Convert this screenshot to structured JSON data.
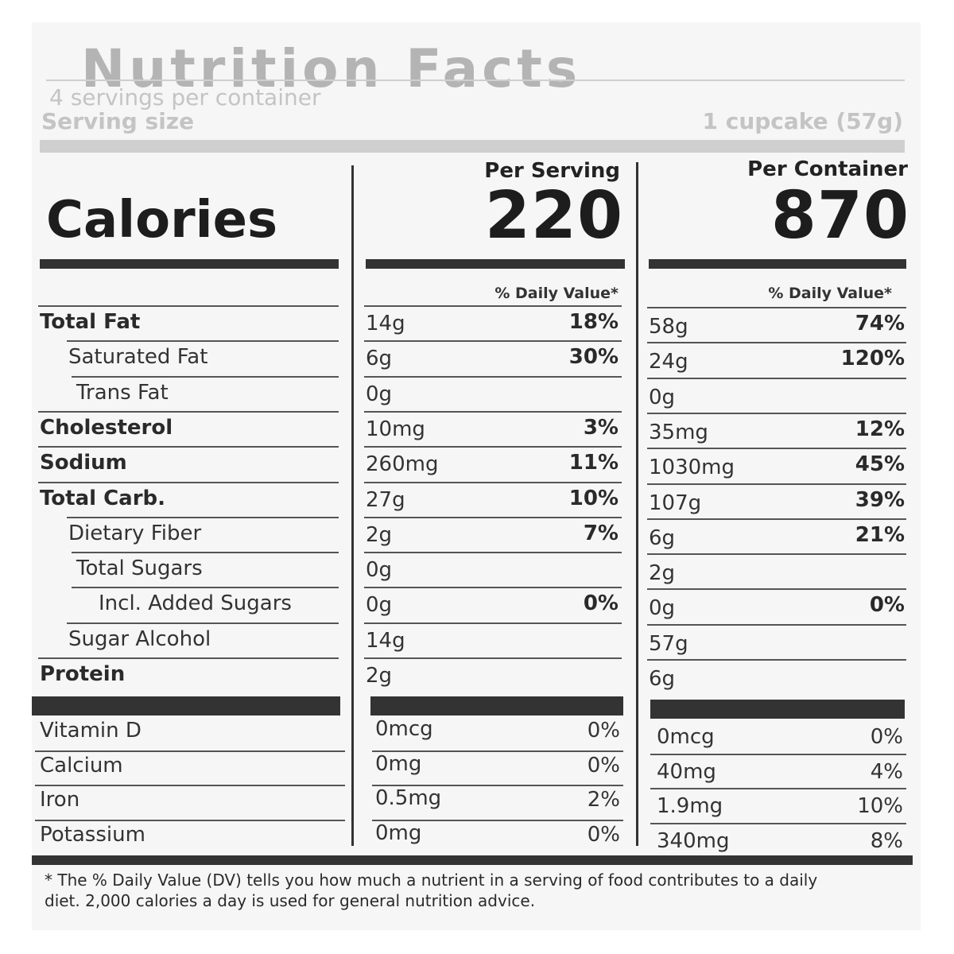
{
  "title": "Nutrition Facts",
  "servings_per_container": "4 servings per container",
  "serving_size_label": "Serving size",
  "serving_size_value": "1 cupcake (57g)",
  "calories_label": "Calories",
  "columns": [
    {
      "header": "Per Serving",
      "calories": "220",
      "dv_header": "% Daily Value*"
    },
    {
      "header": "Per Container",
      "calories": "870",
      "dv_header": "% Daily Value*"
    }
  ],
  "nutrients": [
    {
      "label": "Total Fat",
      "bold": true,
      "indent": 0,
      "serving": {
        "amount": "14g",
        "dv": "18%"
      },
      "container": {
        "amount": "58g",
        "dv": "74%"
      }
    },
    {
      "label": "Saturated Fat",
      "bold": false,
      "indent": 1,
      "serving": {
        "amount": "6g",
        "dv": "30%"
      },
      "container": {
        "amount": "24g",
        "dv": "120%"
      }
    },
    {
      "label": "Trans Fat",
      "bold": false,
      "indent": 2,
      "serving": {
        "amount": "0g",
        "dv": ""
      },
      "container": {
        "amount": "0g",
        "dv": ""
      }
    },
    {
      "label": "Cholesterol",
      "bold": true,
      "indent": 0,
      "serving": {
        "amount": "10mg",
        "dv": "3%"
      },
      "container": {
        "amount": "35mg",
        "dv": "12%"
      }
    },
    {
      "label": "Sodium",
      "bold": true,
      "indent": 0,
      "serving": {
        "amount": "260mg",
        "dv": "11%"
      },
      "container": {
        "amount": "1030mg",
        "dv": "45%"
      }
    },
    {
      "label": "Total Carb.",
      "bold": true,
      "indent": 0,
      "serving": {
        "amount": "27g",
        "dv": "10%"
      },
      "container": {
        "amount": "107g",
        "dv": "39%"
      }
    },
    {
      "label": "Dietary Fiber",
      "bold": false,
      "indent": 1,
      "serving": {
        "amount": "2g",
        "dv": "7%"
      },
      "container": {
        "amount": "6g",
        "dv": "21%"
      }
    },
    {
      "label": "Total Sugars",
      "bold": false,
      "indent": 2,
      "serving": {
        "amount": "0g",
        "dv": ""
      },
      "container": {
        "amount": "2g",
        "dv": ""
      }
    },
    {
      "label": "Incl. Added Sugars",
      "bold": false,
      "indent": 3,
      "serving": {
        "amount": "0g",
        "dv": "0%"
      },
      "container": {
        "amount": "0g",
        "dv": "0%"
      }
    },
    {
      "label": "Sugar Alcohol",
      "bold": false,
      "indent": 1,
      "serving": {
        "amount": "14g",
        "dv": ""
      },
      "container": {
        "amount": "57g",
        "dv": ""
      }
    },
    {
      "label": "Protein",
      "bold": true,
      "indent": 0,
      "serving": {
        "amount": "2g",
        "dv": ""
      },
      "container": {
        "amount": "6g",
        "dv": ""
      }
    }
  ],
  "vitamins": [
    {
      "label": "Vitamin D",
      "serving": {
        "amount": "0mcg",
        "dv": "0%"
      },
      "container": {
        "amount": "0mcg",
        "dv": "0%"
      }
    },
    {
      "label": "Calcium",
      "serving": {
        "amount": "0mg",
        "dv": "0%"
      },
      "container": {
        "amount": "40mg",
        "dv": "4%"
      }
    },
    {
      "label": "Iron",
      "serving": {
        "amount": "0.5mg",
        "dv": "2%"
      },
      "container": {
        "amount": "1.9mg",
        "dv": "10%"
      }
    },
    {
      "label": "Potassium",
      "serving": {
        "amount": "0mg",
        "dv": "0%"
      },
      "container": {
        "amount": "340mg",
        "dv": "8%"
      }
    }
  ],
  "footnote": "* The % Daily Value (DV) tells you how much a nutrient in a serving of food contributes to a daily diet. 2,000 calories a day is used for general nutrition advice."
}
